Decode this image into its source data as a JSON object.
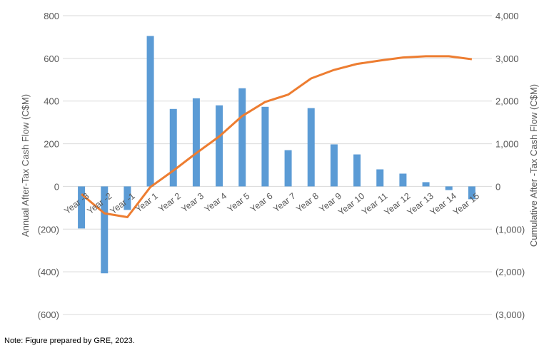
{
  "chart_data": {
    "type": "bar+line",
    "categories": [
      "Year -3",
      "Year -2",
      "Year -1",
      "Year 1",
      "Year 2",
      "Year 3",
      "Year 4",
      "Year 5",
      "Year 6",
      "Year 7",
      "Year 8",
      "Year 9",
      "Year 10",
      "Year 11",
      "Year 12",
      "Year 13",
      "Year 14",
      "Year 15"
    ],
    "series": [
      {
        "name": "Annual After-Tax Cash Flow",
        "type": "bar",
        "axis": "left",
        "color": "#5B9BD5",
        "values": [
          -197,
          -407,
          -110,
          705,
          363,
          413,
          380,
          460,
          373,
          170,
          367,
          197,
          150,
          80,
          60,
          20,
          -17,
          -60
        ]
      },
      {
        "name": "Cumulative After-Tax Cash Flow",
        "type": "line",
        "axis": "right",
        "color": "#ED7D31",
        "values": [
          -180,
          -630,
          -720,
          -15,
          370,
          780,
          1170,
          1650,
          1980,
          2150,
          2530,
          2730,
          2870,
          2950,
          3020,
          3050,
          3050,
          2980
        ]
      }
    ],
    "ylabel": "Annual After-Tax Cash Flow (C$M)",
    "y2label": "Cumulative After -Tax Cash Flow (C$M)",
    "ylim": [
      -600,
      800
    ],
    "y2lim": [
      -3000,
      4000
    ],
    "yticks": [
      "800",
      "600",
      "400",
      "200",
      "0",
      "(200)",
      "(400)",
      "(600)"
    ],
    "y2ticks": [
      "4,000",
      "3,000",
      "2,000",
      "1,000",
      "0",
      "(1,000)",
      "(2,000)",
      "(3,000)"
    ],
    "grid": true
  },
  "note": "Note:  Figure prepared by GRE, 2023."
}
